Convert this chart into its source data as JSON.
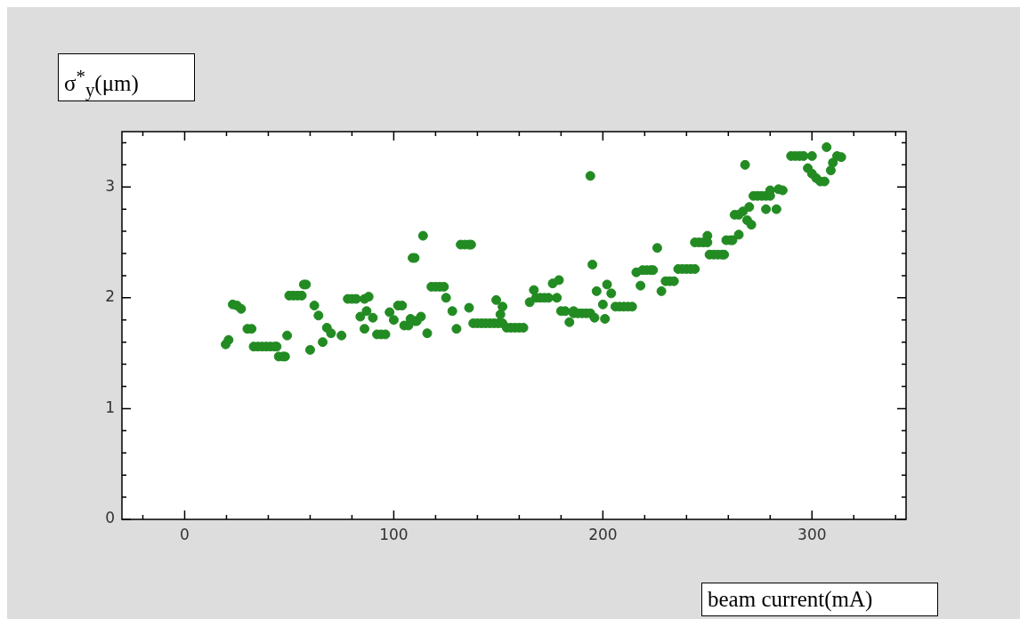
{
  "chart_data": {
    "type": "scatter",
    "xlabel": "beam current(mA)",
    "ylabel": "σ$^{*}$$_{y}$(μm)",
    "xlim": [
      -30,
      345
    ],
    "ylim": [
      0,
      3.5
    ],
    "xticks": [
      {
        "value": -20,
        "label": null
      },
      0,
      {
        "value": 20,
        "label": null
      },
      {
        "value": 40,
        "label": null
      },
      {
        "value": 60,
        "label": null
      },
      {
        "value": 80,
        "label": null
      },
      100,
      {
        "value": 120,
        "label": null
      },
      {
        "value": 140,
        "label": null
      },
      {
        "value": 160,
        "label": null
      },
      {
        "value": 180,
        "label": null
      },
      200,
      {
        "value": 220,
        "label": null
      },
      {
        "value": 240,
        "label": null
      },
      {
        "value": 260,
        "label": null
      },
      {
        "value": 280,
        "label": null
      },
      300,
      {
        "value": 320,
        "label": null
      },
      {
        "value": 340,
        "label": null
      }
    ],
    "yticks": [
      0,
      {
        "value": 0.2,
        "label": null
      },
      {
        "value": 0.4,
        "label": null
      },
      {
        "value": 0.6,
        "label": null
      },
      {
        "value": 0.8,
        "label": null
      },
      1,
      {
        "value": 1.2,
        "label": null
      },
      {
        "value": 1.4,
        "label": null
      },
      {
        "value": 1.6,
        "label": null
      },
      {
        "value": 1.8,
        "label": null
      },
      2,
      {
        "value": 2.2,
        "label": null
      },
      {
        "value": 2.4,
        "label": null
      },
      {
        "value": 2.6,
        "label": null
      },
      {
        "value": 2.8,
        "label": null
      },
      3,
      {
        "value": 3.2,
        "label": null
      },
      {
        "value": 3.4,
        "label": null
      }
    ],
    "marker": "circle",
    "grid": false,
    "legend": false,
    "series": [
      {
        "color": "#228b22",
        "x": [
          19.6,
          21,
          23,
          25,
          27,
          30,
          32,
          33,
          35,
          37,
          39,
          41,
          43,
          44,
          45,
          47,
          48,
          49,
          50,
          52,
          54,
          56,
          57,
          58,
          60,
          62,
          64,
          66,
          68,
          70,
          75,
          78,
          80,
          82,
          84,
          86,
          86,
          87,
          88,
          90,
          92,
          94,
          96,
          98,
          100,
          102,
          104,
          105,
          107,
          108,
          109,
          110,
          110,
          111,
          113,
          114,
          116,
          118,
          120,
          122,
          124,
          125,
          128,
          130,
          132,
          134,
          136,
          137,
          136,
          138,
          140,
          142,
          144,
          146,
          148,
          149,
          151,
          152,
          150,
          152,
          154,
          156,
          158,
          160,
          162,
          165,
          167,
          168,
          170,
          172,
          174,
          176,
          178,
          179,
          180,
          182,
          184,
          186,
          186,
          188,
          190,
          192,
          194,
          194,
          195,
          196,
          197,
          200,
          201,
          202,
          204,
          206,
          208,
          210,
          212,
          214,
          216,
          218,
          219,
          221,
          223,
          224,
          226,
          228,
          230,
          232,
          234,
          236,
          238,
          240,
          242,
          244,
          244,
          246,
          248,
          250,
          250,
          251,
          253,
          255,
          257,
          258,
          259,
          261,
          262,
          263,
          265,
          265,
          267,
          268,
          269,
          270,
          271,
          272,
          274,
          276,
          278,
          280,
          278,
          280,
          283,
          284,
          286,
          290,
          292,
          294,
          296,
          300,
          298,
          300,
          302,
          304,
          306,
          307,
          309,
          310,
          312,
          314
        ],
        "values": [
          1.58,
          1.62,
          1.94,
          1.93,
          1.9,
          1.72,
          1.72,
          1.56,
          1.56,
          1.56,
          1.56,
          1.56,
          1.56,
          1.56,
          1.47,
          1.47,
          1.47,
          1.66,
          2.02,
          2.02,
          2.02,
          2.02,
          2.12,
          2.12,
          1.53,
          1.93,
          1.84,
          1.6,
          1.73,
          1.68,
          1.66,
          1.99,
          1.99,
          1.99,
          1.83,
          1.99,
          1.72,
          1.88,
          2.01,
          1.82,
          1.67,
          1.67,
          1.67,
          1.87,
          1.8,
          1.93,
          1.93,
          1.75,
          1.75,
          1.81,
          2.36,
          2.36,
          1.79,
          1.79,
          1.83,
          2.56,
          1.68,
          2.1,
          2.1,
          2.1,
          2.1,
          2.0,
          1.88,
          1.72,
          2.48,
          2.48,
          2.48,
          2.48,
          1.91,
          1.77,
          1.77,
          1.77,
          1.77,
          1.77,
          1.77,
          1.98,
          1.85,
          1.92,
          1.77,
          1.77,
          1.73,
          1.73,
          1.73,
          1.73,
          1.73,
          1.96,
          2.07,
          2.0,
          2.0,
          2.0,
          2.0,
          2.13,
          2.0,
          2.16,
          1.88,
          1.88,
          1.78,
          1.88,
          1.86,
          1.86,
          1.86,
          1.86,
          1.86,
          3.1,
          2.3,
          1.82,
          2.06,
          1.94,
          1.81,
          2.12,
          2.04,
          1.92,
          1.92,
          1.92,
          1.92,
          1.92,
          2.23,
          2.11,
          2.25,
          2.25,
          2.25,
          2.25,
          2.45,
          2.06,
          2.15,
          2.15,
          2.15,
          2.26,
          2.26,
          2.26,
          2.26,
          2.26,
          2.5,
          2.5,
          2.5,
          2.5,
          2.56,
          2.39,
          2.39,
          2.39,
          2.39,
          2.39,
          2.52,
          2.52,
          2.52,
          2.75,
          2.75,
          2.57,
          2.78,
          3.2,
          2.7,
          2.82,
          2.66,
          2.92,
          2.92,
          2.92,
          2.92,
          2.92,
          2.8,
          2.97,
          2.8,
          2.98,
          2.97,
          3.28,
          3.28,
          3.28,
          3.28,
          3.28,
          3.17,
          3.12,
          3.08,
          3.05,
          3.05,
          3.36,
          3.15,
          3.22,
          3.28,
          3.27
        ]
      }
    ]
  }
}
